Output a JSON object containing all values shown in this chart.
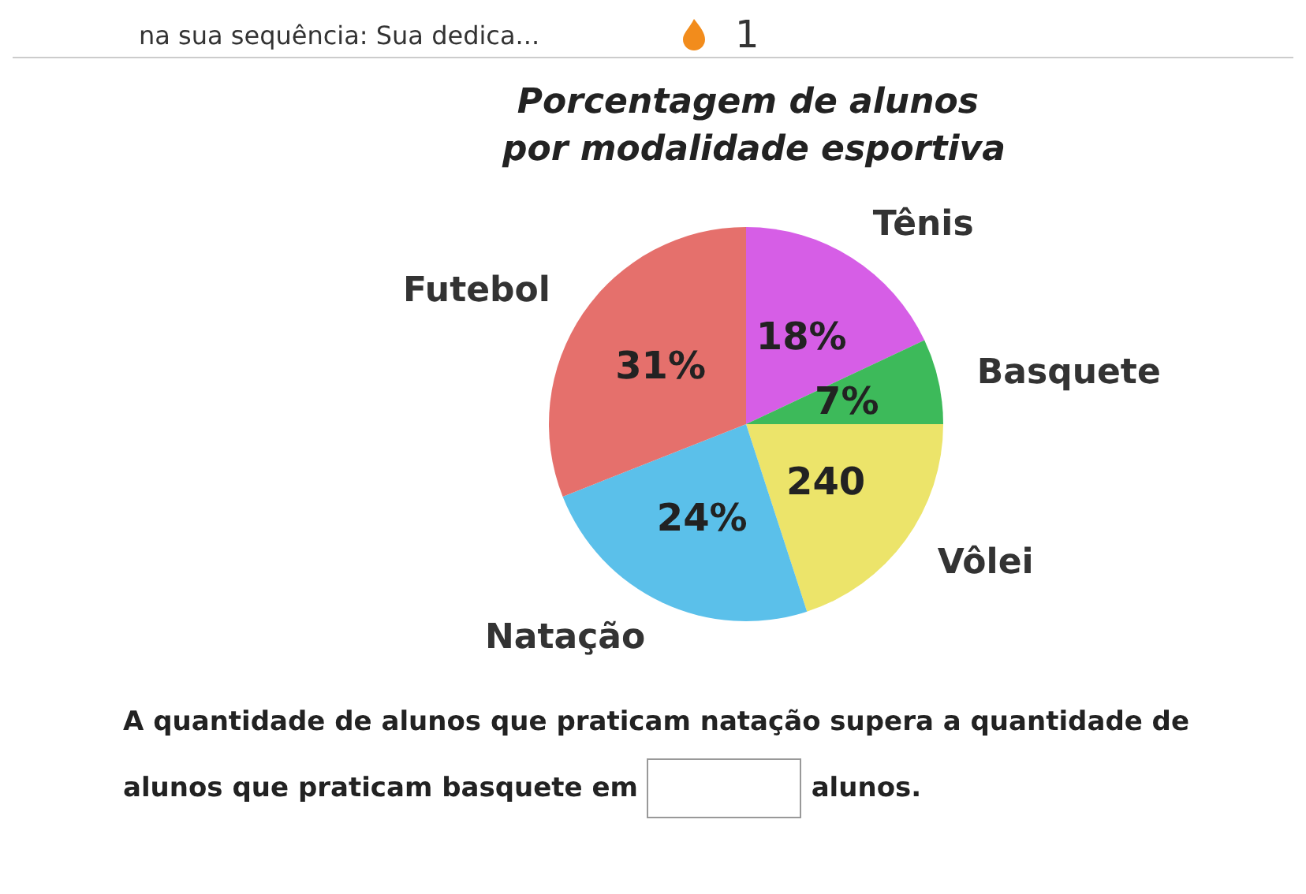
{
  "chart_data": {
    "type": "pie",
    "title": "Porcentagem de alunos por modalidade esportiva",
    "categories": [
      "Tênis",
      "Basquete",
      "Vôlei",
      "Natação",
      "Futebol"
    ],
    "values": [
      18,
      7,
      20,
      24,
      31
    ],
    "value_labels": [
      "18%",
      "7%",
      null,
      "24%",
      "31%"
    ],
    "colors": [
      "#d65ee6",
      "#3dba5a",
      "#ece46a",
      "#5bc0ea",
      "#e5706c"
    ],
    "legend": false,
    "annotations": [
      "na sua sequência: Sua dedica...",
      "1",
      "A quantidade de alunos que praticam natação supera a quantidade de alunos que praticam basquete em",
      "alunos.",
      {
        "text": "240",
        "x": "Vôlei"
      }
    ]
  }
}
